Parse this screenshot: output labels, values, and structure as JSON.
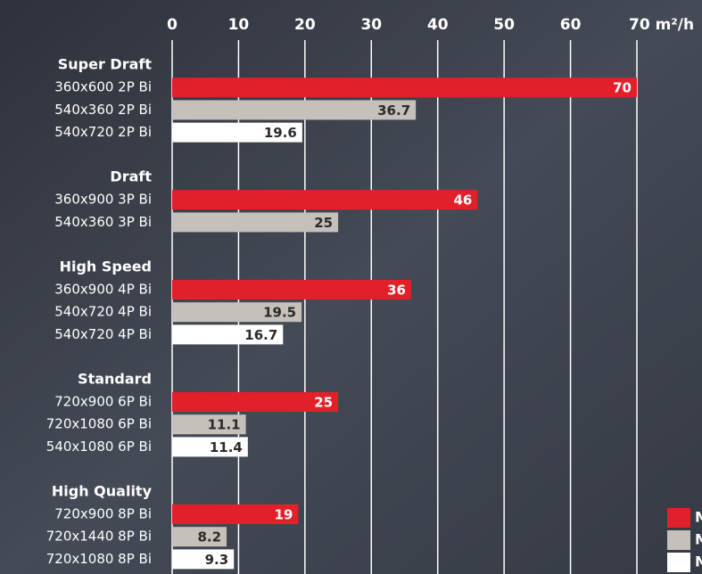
{
  "chart_data": {
    "type": "bar",
    "series": [
      {
        "name": "M",
        "color": "#e3202a"
      },
      {
        "name": "M",
        "color": "#c5c0ba"
      },
      {
        "name": "M",
        "color": "#ffffff"
      }
    ],
    "groups": [
      {
        "title": "Super Draft",
        "categories": [
          "360x600 2P Bi",
          "540x360 2P Bi",
          "540x720 2P Bi"
        ],
        "values": [
          70,
          36.7,
          19.6
        ]
      },
      {
        "title": "Draft",
        "categories": [
          "360x900 3P Bi",
          "540x360 3P Bi"
        ],
        "values": [
          46,
          25
        ]
      },
      {
        "title": "High Speed",
        "categories": [
          "360x900 4P Bi",
          "540x720 4P Bi",
          "540x720 4P Bi"
        ],
        "values": [
          36,
          19.5,
          16.7
        ]
      },
      {
        "title": "Standard",
        "categories": [
          "720x900 6P Bi",
          "720x1080 6P Bi",
          "540x1080 6P Bi"
        ],
        "values": [
          25,
          11.1,
          11.4
        ]
      },
      {
        "title": "High Quality",
        "categories": [
          "720x900 8P Bi",
          "720x1440 8P Bi",
          "720x1080 8P Bi"
        ],
        "values": [
          19,
          8.2,
          9.3
        ]
      }
    ],
    "xlim": [
      0,
      70
    ],
    "xticks": [
      0,
      10,
      20,
      30,
      40,
      50,
      60,
      {
        "value": 70,
        "label": "70 m²/h"
      }
    ],
    "grid": true
  }
}
